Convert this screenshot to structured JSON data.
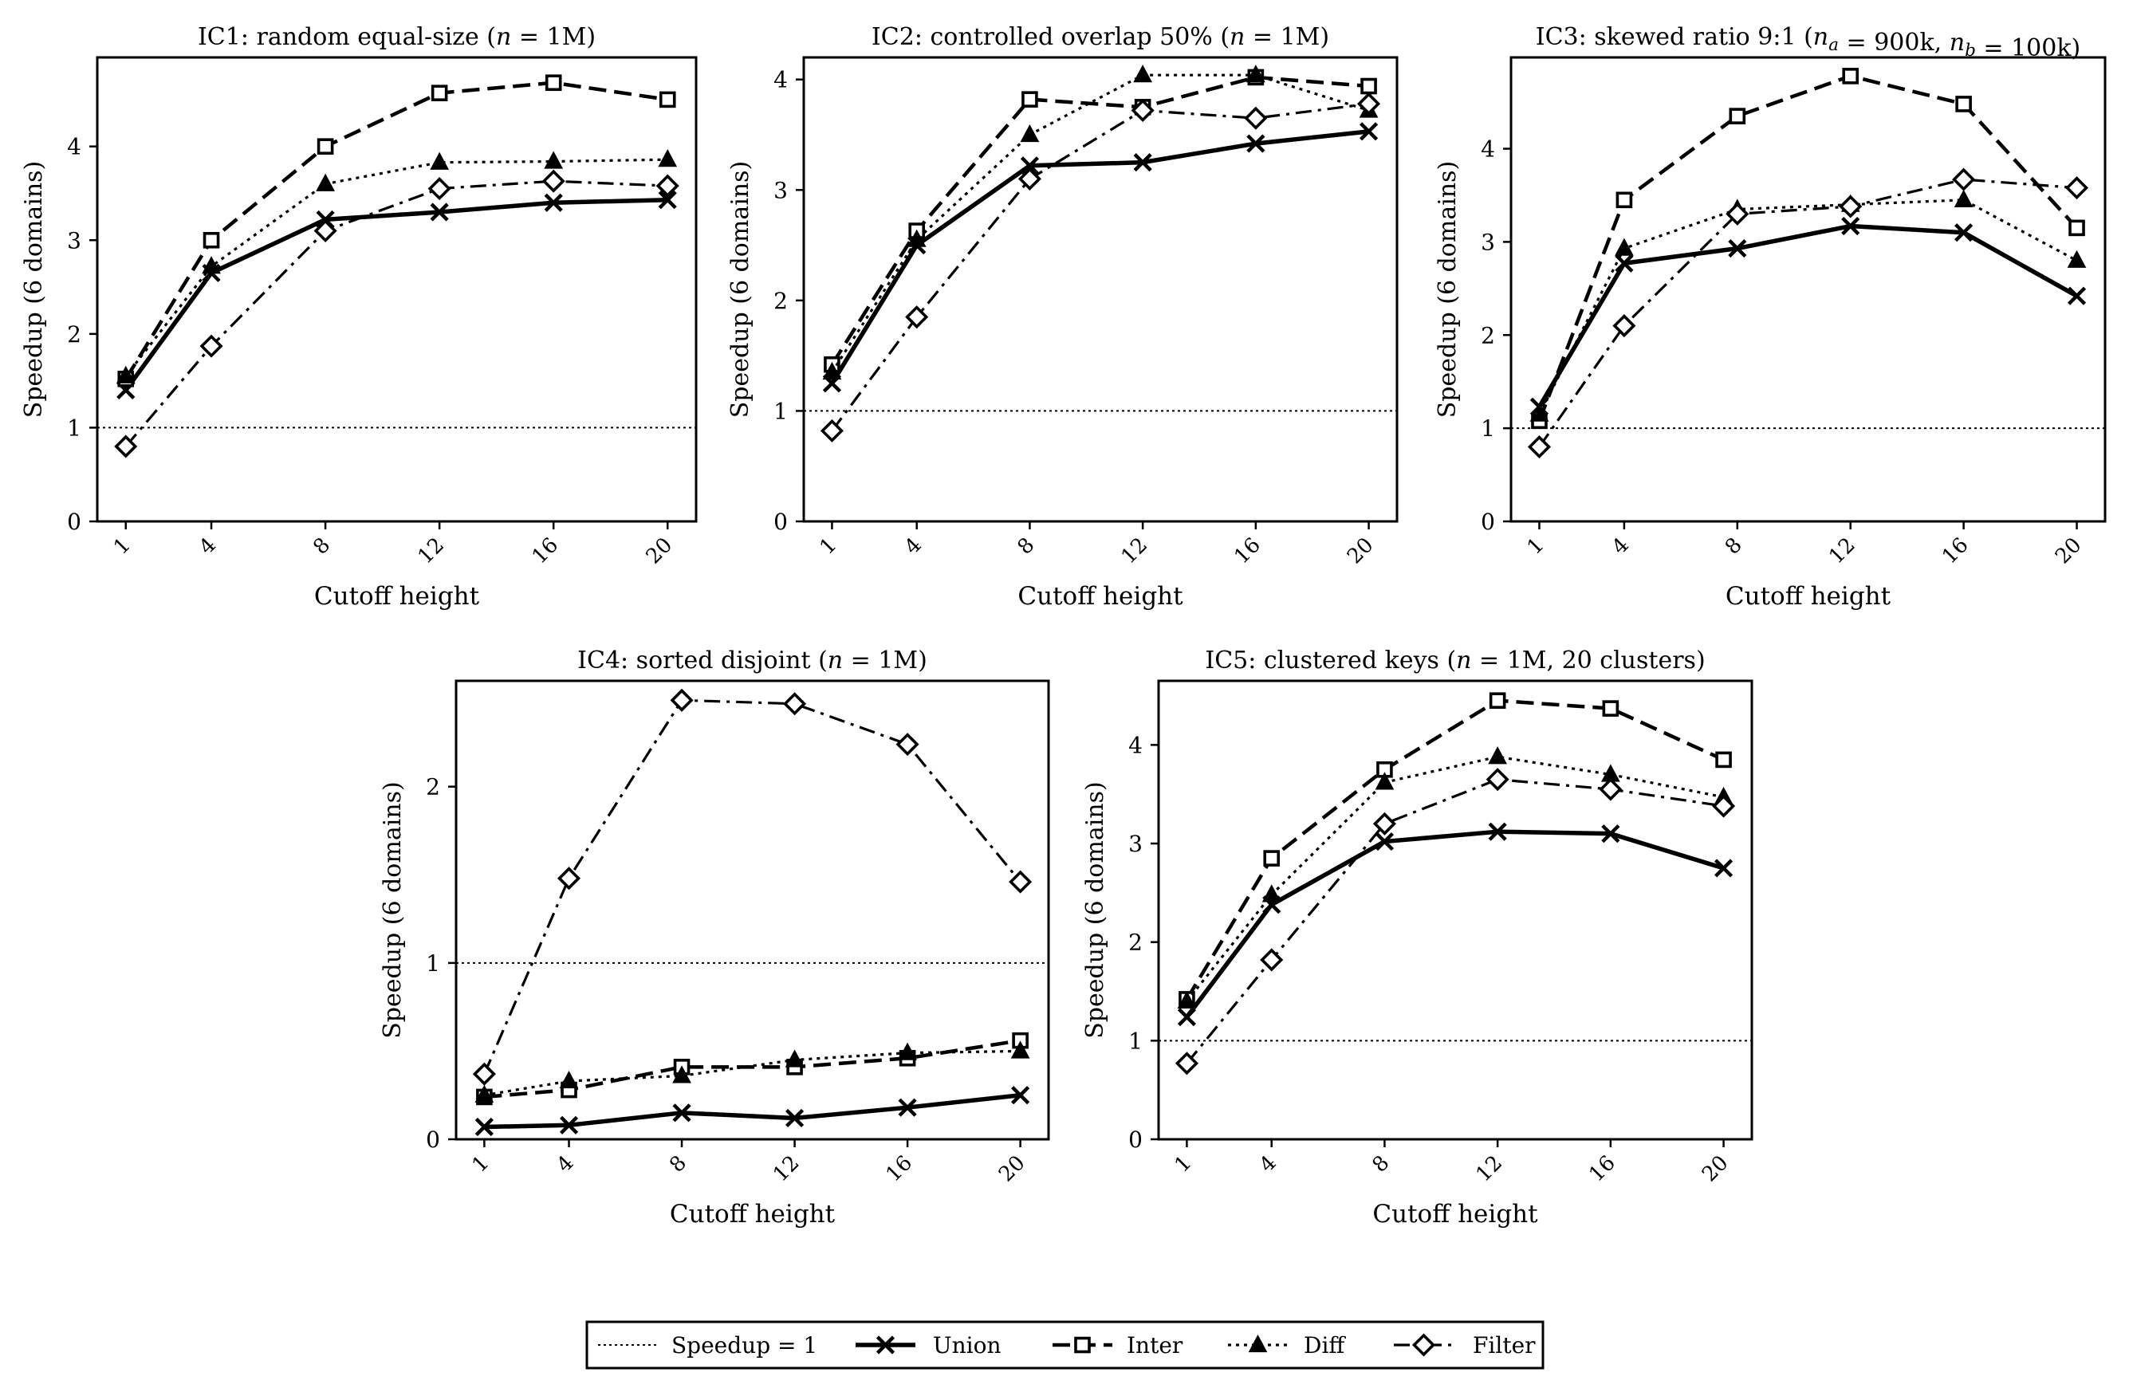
{
  "legend": {
    "items": [
      {
        "label": "Speedup = 1",
        "key": "ref"
      },
      {
        "label": "Union",
        "key": "union"
      },
      {
        "label": "Inter",
        "key": "inter"
      },
      {
        "label": "Diff",
        "key": "diff"
      },
      {
        "label": "Filter",
        "key": "filter"
      }
    ]
  },
  "chart_data": [
    {
      "type": "line",
      "title_parts": [
        {
          "t": "IC1: random equal-size ("
        },
        {
          "t": "n",
          "i": true
        },
        {
          "t": " = 1M)"
        }
      ],
      "xlabel": "Cutoff height",
      "ylabel": "Speedup (6 domains)",
      "x": [
        1,
        4,
        8,
        12,
        16,
        20
      ],
      "xticks": [
        "1",
        "4",
        "8",
        "12",
        "16",
        "20"
      ],
      "xlim": [
        0,
        21
      ],
      "ylim": [
        0,
        4.95
      ],
      "yticks": [
        0,
        1,
        2,
        3,
        4
      ],
      "reference_line": 1,
      "series": [
        {
          "name": "Union",
          "key": "union",
          "values": [
            1.4,
            2.65,
            3.22,
            3.3,
            3.4,
            3.43
          ]
        },
        {
          "name": "Inter",
          "key": "inter",
          "values": [
            1.52,
            3.0,
            4.0,
            4.57,
            4.68,
            4.5
          ]
        },
        {
          "name": "Diff",
          "key": "diff",
          "values": [
            1.55,
            2.72,
            3.6,
            3.83,
            3.84,
            3.86
          ]
        },
        {
          "name": "Filter",
          "key": "filter",
          "values": [
            0.8,
            1.87,
            3.1,
            3.55,
            3.63,
            3.58
          ]
        }
      ]
    },
    {
      "type": "line",
      "title_parts": [
        {
          "t": "IC2: controlled overlap 50% ("
        },
        {
          "t": "n",
          "i": true
        },
        {
          "t": " = 1M)"
        }
      ],
      "xlabel": "Cutoff height",
      "ylabel": "Speedup (6 domains)",
      "x": [
        1,
        4,
        8,
        12,
        16,
        20
      ],
      "xticks": [
        "1",
        "4",
        "8",
        "12",
        "16",
        "20"
      ],
      "xlim": [
        0,
        21
      ],
      "ylim": [
        0,
        4.2
      ],
      "yticks": [
        0,
        1,
        2,
        3,
        4
      ],
      "reference_line": 1,
      "series": [
        {
          "name": "Union",
          "key": "union",
          "values": [
            1.25,
            2.5,
            3.22,
            3.25,
            3.42,
            3.53
          ]
        },
        {
          "name": "Inter",
          "key": "inter",
          "values": [
            1.42,
            2.63,
            3.82,
            3.75,
            4.02,
            3.94
          ]
        },
        {
          "name": "Diff",
          "key": "diff",
          "values": [
            1.35,
            2.55,
            3.5,
            4.04,
            4.04,
            3.72
          ]
        },
        {
          "name": "Filter",
          "key": "filter",
          "values": [
            0.82,
            1.85,
            3.1,
            3.72,
            3.65,
            3.78
          ]
        }
      ]
    },
    {
      "type": "line",
      "title_parts": [
        {
          "t": "IC3: skewed ratio 9:1 ("
        },
        {
          "t": "n",
          "i": true
        },
        {
          "t": "a",
          "sub": true
        },
        {
          "t": " = 900k, "
        },
        {
          "t": "n",
          "i": true
        },
        {
          "t": "b",
          "sub": true
        },
        {
          "t": " = 100k)"
        }
      ],
      "xlabel": "Cutoff height",
      "ylabel": "Speedup (6 domains)",
      "x": [
        1,
        4,
        8,
        12,
        16,
        20
      ],
      "xticks": [
        "1",
        "4",
        "8",
        "12",
        "16",
        "20"
      ],
      "xlim": [
        0,
        21
      ],
      "ylim": [
        0,
        4.98
      ],
      "yticks": [
        0,
        1,
        2,
        3,
        4
      ],
      "reference_line": 1,
      "series": [
        {
          "name": "Union",
          "key": "union",
          "values": [
            1.23,
            2.77,
            2.93,
            3.17,
            3.1,
            2.42
          ]
        },
        {
          "name": "Inter",
          "key": "inter",
          "values": [
            1.08,
            3.45,
            4.35,
            4.78,
            4.48,
            3.15
          ]
        },
        {
          "name": "Diff",
          "key": "diff",
          "values": [
            1.15,
            2.93,
            3.35,
            3.4,
            3.45,
            2.8
          ]
        },
        {
          "name": "Filter",
          "key": "filter",
          "values": [
            0.8,
            2.1,
            3.3,
            3.38,
            3.67,
            3.58
          ]
        }
      ]
    },
    {
      "type": "line",
      "title_parts": [
        {
          "t": "IC4: sorted disjoint ("
        },
        {
          "t": "n",
          "i": true
        },
        {
          "t": " = 1M)"
        }
      ],
      "xlabel": "Cutoff height",
      "ylabel": "Speedup (6 domains)",
      "x": [
        1,
        4,
        8,
        12,
        16,
        20
      ],
      "xticks": [
        "1",
        "4",
        "8",
        "12",
        "16",
        "20"
      ],
      "xlim": [
        0,
        21
      ],
      "ylim": [
        0,
        2.6
      ],
      "yticks": [
        0,
        1,
        2
      ],
      "reference_line": 1,
      "series": [
        {
          "name": "Union",
          "key": "union",
          "values": [
            0.07,
            0.08,
            0.15,
            0.12,
            0.18,
            0.25
          ]
        },
        {
          "name": "Inter",
          "key": "inter",
          "values": [
            0.24,
            0.28,
            0.41,
            0.41,
            0.46,
            0.56
          ]
        },
        {
          "name": "Diff",
          "key": "diff",
          "values": [
            0.25,
            0.33,
            0.36,
            0.45,
            0.49,
            0.5
          ]
        },
        {
          "name": "Filter",
          "key": "filter",
          "values": [
            0.37,
            1.48,
            2.49,
            2.47,
            2.24,
            1.46
          ]
        }
      ]
    },
    {
      "type": "line",
      "title_parts": [
        {
          "t": "IC5: clustered keys ("
        },
        {
          "t": "n",
          "i": true
        },
        {
          "t": " = 1M, 20 clusters)"
        }
      ],
      "xlabel": "Cutoff height",
      "ylabel": "Speedup (6 domains)",
      "x": [
        1,
        4,
        8,
        12,
        16,
        20
      ],
      "xticks": [
        "1",
        "4",
        "8",
        "12",
        "16",
        "20"
      ],
      "xlim": [
        0,
        21
      ],
      "ylim": [
        0,
        4.65
      ],
      "yticks": [
        0,
        1,
        2,
        3,
        4
      ],
      "reference_line": 1,
      "series": [
        {
          "name": "Union",
          "key": "union",
          "values": [
            1.24,
            2.38,
            3.02,
            3.12,
            3.1,
            2.75
          ]
        },
        {
          "name": "Inter",
          "key": "inter",
          "values": [
            1.42,
            2.85,
            3.75,
            4.45,
            4.37,
            3.85
          ]
        },
        {
          "name": "Diff",
          "key": "diff",
          "values": [
            1.4,
            2.48,
            3.62,
            3.88,
            3.7,
            3.47
          ]
        },
        {
          "name": "Filter",
          "key": "filter",
          "values": [
            0.77,
            1.82,
            3.2,
            3.65,
            3.55,
            3.38
          ]
        }
      ]
    }
  ]
}
